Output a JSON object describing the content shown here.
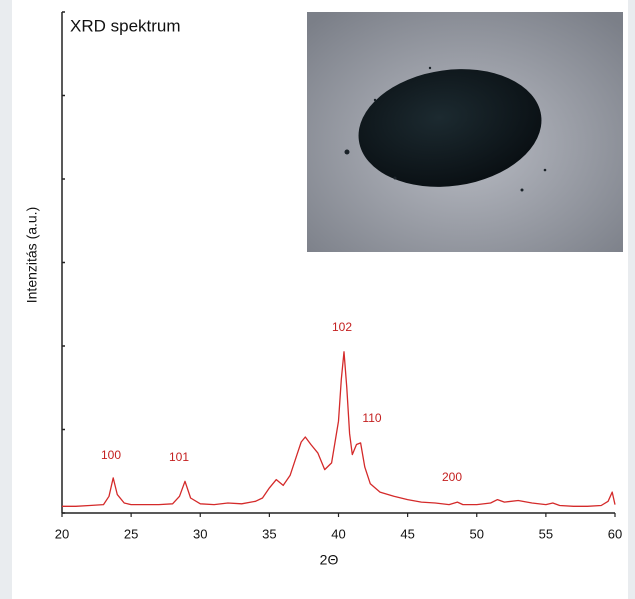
{
  "chart_data": {
    "type": "line",
    "title": "XRD spektrum",
    "xlabel": "2Θ",
    "ylabel": "Intenzitás (a.u.)",
    "xlim": [
      20,
      60
    ],
    "xticks": [
      20,
      25,
      30,
      35,
      40,
      45,
      50,
      55,
      60
    ],
    "ylim": [
      0,
      6
    ],
    "yticks": [
      0,
      1,
      2,
      3,
      4,
      5,
      6
    ],
    "annotations": [
      "100",
      "101",
      "102",
      "110",
      "200"
    ],
    "series": [
      {
        "name": "XRD",
        "color": "#d42a2a",
        "x": [
          20,
          21,
          22,
          23,
          23.4,
          23.7,
          24,
          24.5,
          25,
          26,
          27,
          28,
          28.5,
          28.9,
          29.3,
          30,
          31,
          32,
          33,
          34,
          34.5,
          35,
          35.5,
          36,
          36.5,
          37,
          37.3,
          37.6,
          38,
          38.5,
          39,
          39.5,
          40,
          40.2,
          40.4,
          40.6,
          40.8,
          41,
          41.3,
          41.6,
          41.9,
          42.3,
          43,
          44,
          45,
          46,
          47,
          48,
          48.6,
          49,
          50,
          51,
          51.5,
          52,
          53,
          54,
          55,
          55.5,
          56,
          57,
          58,
          59,
          59.5,
          59.8,
          60
        ],
        "values": [
          0.08,
          0.08,
          0.09,
          0.1,
          0.2,
          0.42,
          0.22,
          0.12,
          0.1,
          0.1,
          0.1,
          0.11,
          0.2,
          0.38,
          0.18,
          0.11,
          0.1,
          0.12,
          0.11,
          0.14,
          0.18,
          0.3,
          0.4,
          0.33,
          0.45,
          0.7,
          0.85,
          0.91,
          0.82,
          0.72,
          0.52,
          0.6,
          1.1,
          1.6,
          1.93,
          1.5,
          0.95,
          0.7,
          0.82,
          0.84,
          0.55,
          0.35,
          0.25,
          0.2,
          0.16,
          0.13,
          0.12,
          0.1,
          0.13,
          0.1,
          0.1,
          0.12,
          0.16,
          0.13,
          0.15,
          0.12,
          0.1,
          0.12,
          0.09,
          0.08,
          0.08,
          0.09,
          0.14,
          0.25,
          0.1
        ]
      }
    ]
  }
}
